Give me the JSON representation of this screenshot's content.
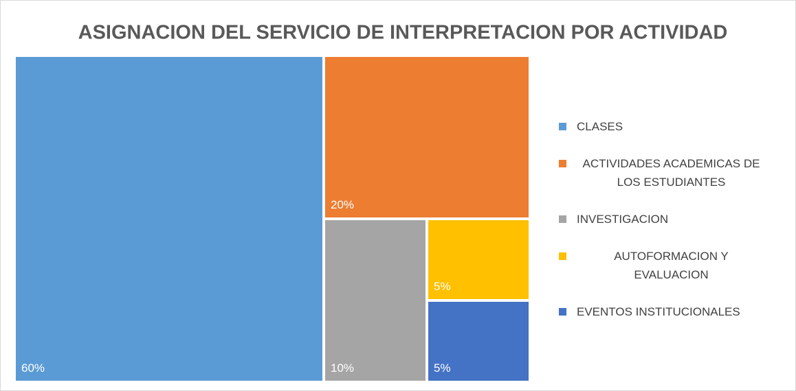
{
  "chart_data": {
    "type": "treemap",
    "title": "ASIGNACION DEL SERVICIO DE INTERPRETACION POR ACTIVIDAD",
    "categories": [
      "CLASES",
      "ACTIVIDADES ACADEMICAS DE LOS ESTUDIANTES",
      "INVESTIGACION",
      "AUTOFORMACION Y EVALUACION",
      "EVENTOS INSTITUCIONALES"
    ],
    "values": [
      60,
      20,
      10,
      5,
      5
    ],
    "value_labels": [
      "60%",
      "20%",
      "10%",
      "5%",
      "5%"
    ],
    "colors": [
      "#5b9bd5",
      "#ed7d31",
      "#a5a5a5",
      "#ffc000",
      "#4472c4"
    ],
    "legend": "right"
  }
}
